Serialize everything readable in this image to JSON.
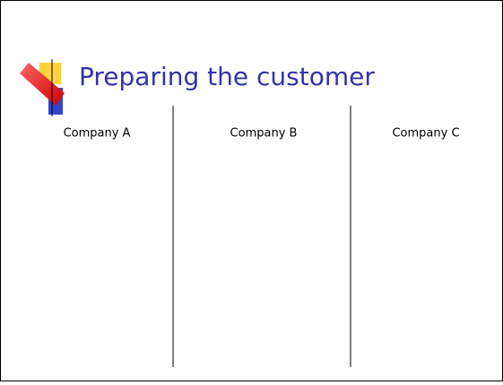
{
  "slide": {
    "title": "Preparing the customer",
    "columns": [
      "Company A",
      "Company B",
      "Company C"
    ]
  }
}
